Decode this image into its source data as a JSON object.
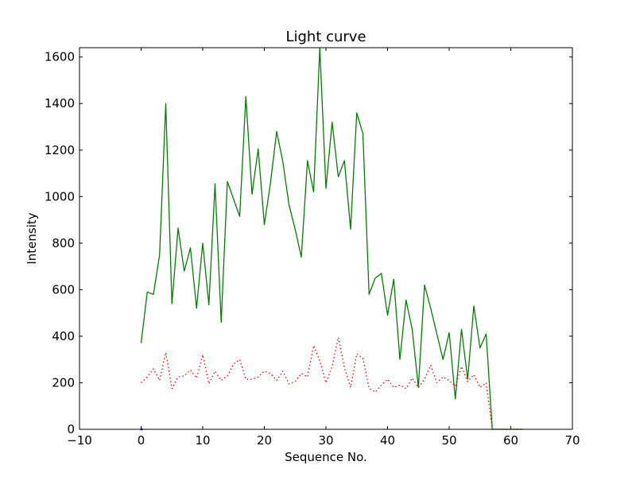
{
  "chart_data": {
    "type": "line",
    "title": "Light curve",
    "xlabel": "Sequence No.",
    "ylabel": "Intensity",
    "xlim": [
      -10,
      70
    ],
    "ylim": [
      0,
      1640
    ],
    "x_ticks": [
      "−10",
      "0",
      "10",
      "20",
      "30",
      "40",
      "50",
      "60",
      "70"
    ],
    "y_ticks": [
      "0",
      "200",
      "400",
      "600",
      "800",
      "1000",
      "1200",
      "1400",
      "1600"
    ],
    "x_tick_values": [
      -10,
      0,
      10,
      20,
      30,
      40,
      50,
      60,
      70
    ],
    "y_tick_values": [
      0,
      200,
      400,
      600,
      800,
      1000,
      1200,
      1400,
      1600
    ],
    "grid": false,
    "series": [
      {
        "style": "solid",
        "color": "#008000",
        "x": [
          0,
          1,
          2,
          3,
          4,
          5,
          6,
          7,
          8,
          9,
          10,
          11,
          12,
          13,
          14,
          15,
          16,
          17,
          18,
          19,
          20,
          21,
          22,
          23,
          24,
          25,
          26,
          27,
          28,
          29,
          30,
          31,
          32,
          33,
          34,
          35,
          36,
          37,
          38,
          39,
          40,
          41,
          42,
          43,
          44,
          45,
          46,
          47,
          48,
          49,
          50,
          51,
          52,
          53,
          54,
          55,
          56,
          57,
          58,
          59,
          60,
          61,
          62
        ],
        "values": [
          370,
          590,
          580,
          750,
          1400,
          540,
          865,
          680,
          780,
          520,
          800,
          535,
          1055,
          460,
          1065,
          990,
          915,
          1430,
          1010,
          1205,
          880,
          1060,
          1280,
          1150,
          965,
          860,
          740,
          1155,
          1020,
          1640,
          1035,
          1320,
          1085,
          1155,
          860,
          1360,
          1270,
          580,
          650,
          670,
          490,
          645,
          300,
          555,
          430,
          180,
          620,
          520,
          410,
          300,
          415,
          130,
          430,
          215,
          530,
          350,
          410,
          0,
          0,
          0,
          0,
          0,
          0
        ]
      },
      {
        "style": "dotted",
        "color": "#ff0000",
        "x": [
          0,
          1,
          2,
          3,
          4,
          5,
          6,
          7,
          8,
          9,
          10,
          11,
          12,
          13,
          14,
          15,
          16,
          17,
          18,
          19,
          20,
          21,
          22,
          23,
          24,
          25,
          26,
          27,
          28,
          29,
          30,
          31,
          32,
          33,
          34,
          35,
          36,
          37,
          38,
          39,
          40,
          41,
          42,
          43,
          44,
          45,
          46,
          47,
          48,
          49,
          50,
          51,
          52,
          53,
          54,
          55,
          56,
          57,
          58,
          59,
          60,
          61,
          62
        ],
        "values": [
          200,
          225,
          260,
          210,
          330,
          175,
          225,
          230,
          255,
          220,
          320,
          195,
          250,
          210,
          230,
          280,
          300,
          215,
          215,
          225,
          250,
          240,
          210,
          250,
          195,
          205,
          240,
          225,
          360,
          295,
          200,
          270,
          395,
          265,
          180,
          325,
          305,
          175,
          160,
          190,
          215,
          180,
          190,
          175,
          220,
          180,
          215,
          275,
          200,
          225,
          210,
          185,
          270,
          205,
          235,
          180,
          200,
          0,
          0,
          0,
          0,
          0,
          0
        ]
      },
      {
        "style": "solid",
        "color": "#0000ff",
        "x": [
          0
        ],
        "values": [
          0
        ]
      }
    ]
  }
}
